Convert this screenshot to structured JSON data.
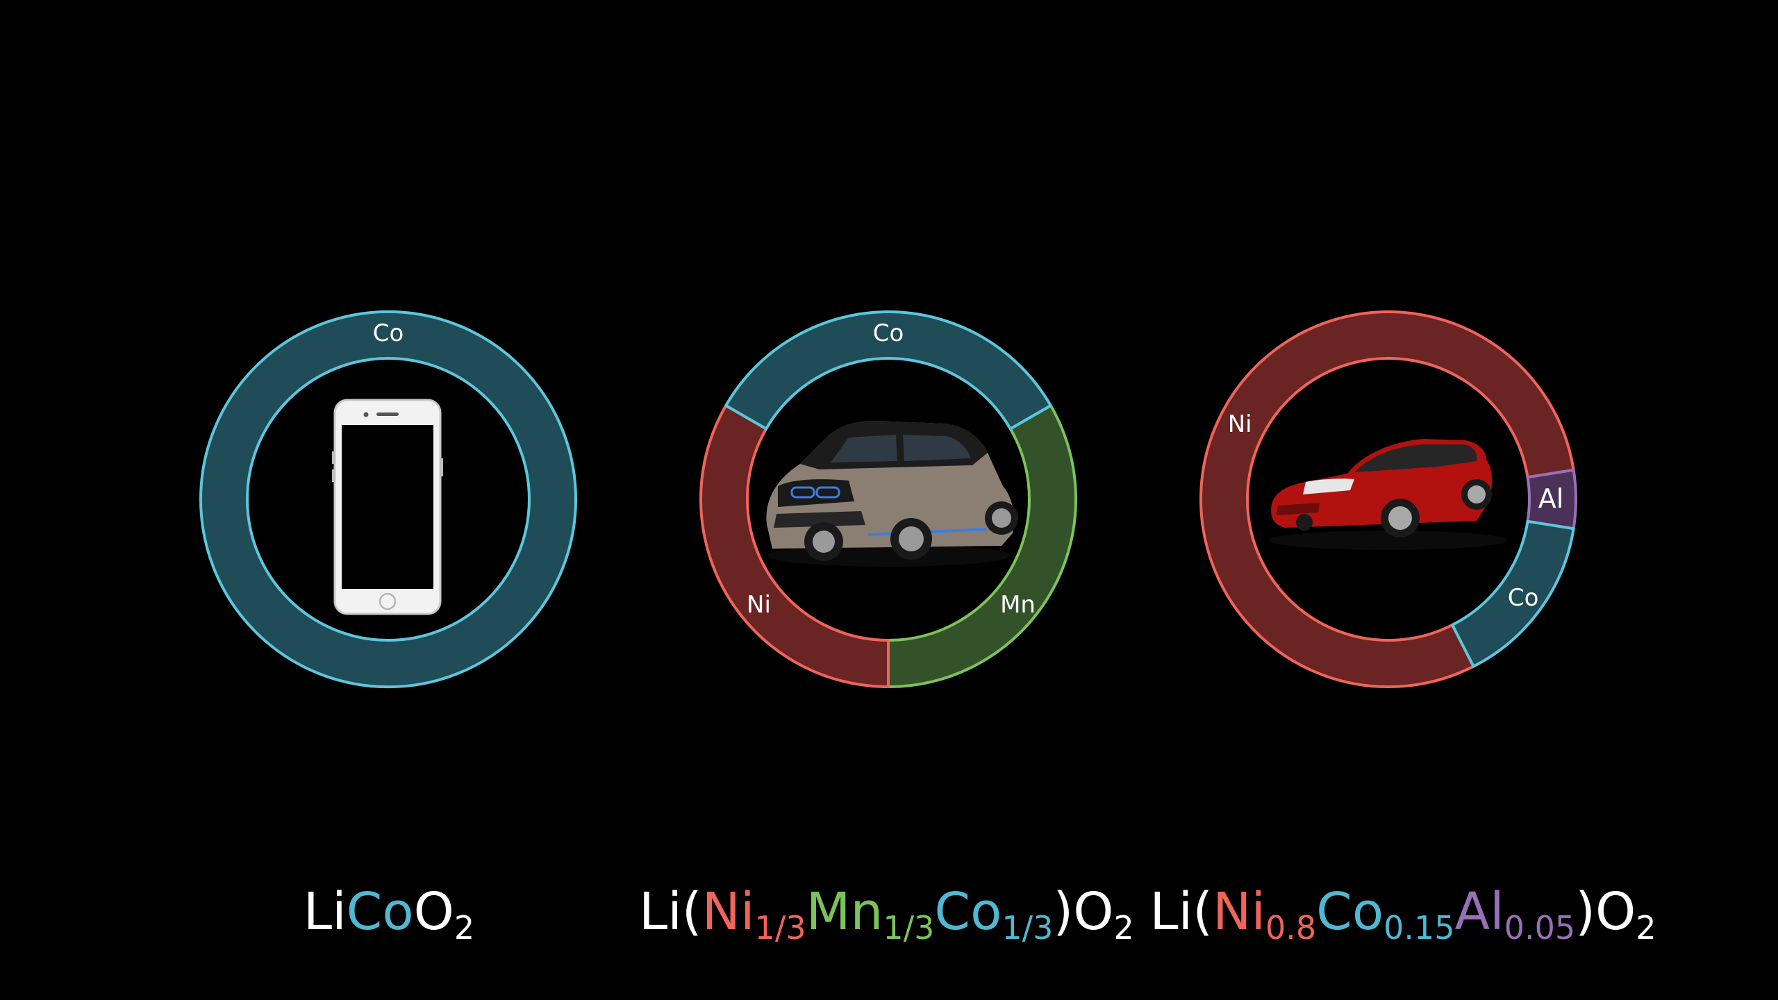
{
  "colors": {
    "background": "#000000",
    "Co": {
      "stroke": "#5cc6dc",
      "fill": "#1f4c57",
      "text": "#4fb8d2"
    },
    "Ni": {
      "stroke": "#f0645a",
      "fill": "#6a2423",
      "text": "#f0645a"
    },
    "Mn": {
      "stroke": "#7bc35a",
      "fill": "#34522a",
      "text": "#7bc35a"
    },
    "Al": {
      "stroke": "#9a6fb8",
      "fill": "#4a3158",
      "text": "#9a6fb8"
    }
  },
  "chart_data": [
    {
      "type": "pie",
      "icon": "smartphone-icon",
      "slices": [
        {
          "label": "Co",
          "value": 1.0
        }
      ],
      "formula": [
        {
          "text": "Li",
          "color": "white"
        },
        {
          "text": "Co",
          "color": "Co"
        },
        {
          "text": "O",
          "color": "white"
        },
        {
          "text": "2",
          "color": "white",
          "sub": true
        }
      ]
    },
    {
      "type": "pie",
      "icon": "electric-hatchback-car-icon",
      "slices": [
        {
          "label": "Mn",
          "value": 0.3333
        },
        {
          "label": "Ni",
          "value": 0.3333
        },
        {
          "label": "Co",
          "value": 0.3333
        }
      ],
      "formula": [
        {
          "text": "Li(",
          "color": "white"
        },
        {
          "text": "Ni",
          "color": "Ni"
        },
        {
          "text": "1/3",
          "color": "Ni",
          "sub": true
        },
        {
          "text": "Mn",
          "color": "Mn"
        },
        {
          "text": "1/3",
          "color": "Mn",
          "sub": true
        },
        {
          "text": "Co",
          "color": "Co"
        },
        {
          "text": "1/3",
          "color": "Co",
          "sub": true
        },
        {
          "text": ")O",
          "color": "white"
        },
        {
          "text": "2",
          "color": "white",
          "sub": true
        }
      ]
    },
    {
      "type": "pie",
      "icon": "red-sedan-car-icon",
      "slices": [
        {
          "label": "Ni",
          "value": 0.8
        },
        {
          "label": "Al",
          "value": 0.05
        },
        {
          "label": "Co",
          "value": 0.15
        }
      ],
      "formula": [
        {
          "text": "Li(",
          "color": "white"
        },
        {
          "text": "Ni",
          "color": "Ni"
        },
        {
          "text": "0.8",
          "color": "Ni",
          "sub": true
        },
        {
          "text": "Co",
          "color": "Co"
        },
        {
          "text": "0.15",
          "color": "Co",
          "sub": true
        },
        {
          "text": "Al",
          "color": "Al"
        },
        {
          "text": "0.05",
          "color": "Al",
          "sub": true
        },
        {
          "text": ")O",
          "color": "white"
        },
        {
          "text": "2",
          "color": "white",
          "sub": true
        }
      ]
    }
  ]
}
